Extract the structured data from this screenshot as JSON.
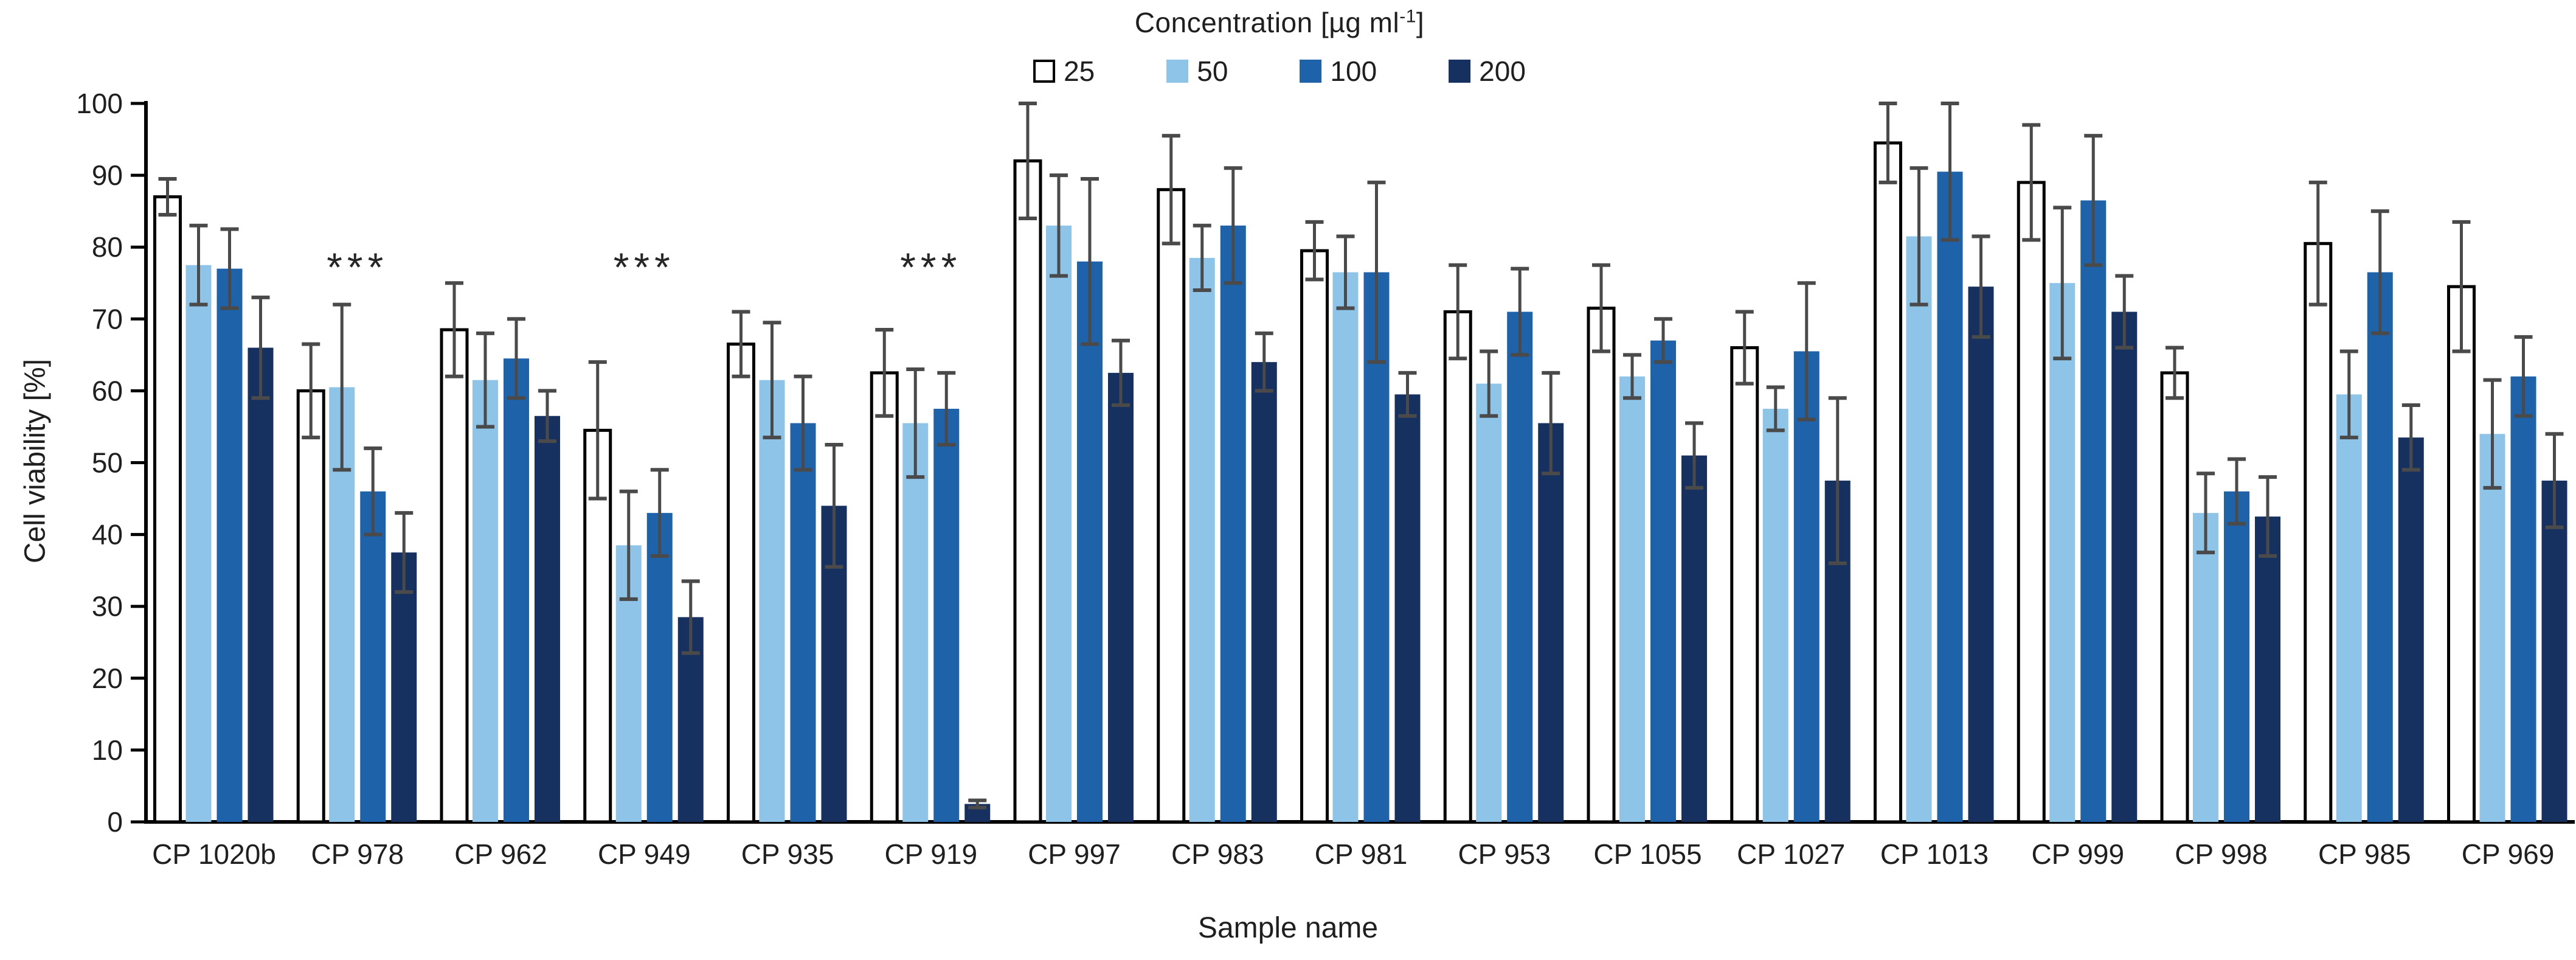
{
  "chart_data": {
    "type": "bar",
    "title": "",
    "legend_title_main": "Concentration [µg ml",
    "legend_title_sup": "-1",
    "legend_title_end": "]",
    "legend_position": "top",
    "xlabel": "Sample name",
    "ylabel": "Cell viability [%]",
    "ylim": [
      0,
      100
    ],
    "ytick_step": 10,
    "yticks": [
      0,
      10,
      20,
      30,
      40,
      50,
      60,
      70,
      80,
      90,
      100
    ],
    "grid": "off",
    "error_bar_color": "#4a4a4a",
    "axis_color": "#000000",
    "text_color": "#1f1f1f",
    "categories": [
      "CP 1020b",
      "CP 978",
      "CP 962",
      "CP 949",
      "CP 935",
      "CP 919",
      "CP 997",
      "CP 983",
      "CP 981",
      "CP 953",
      "CP 1055",
      "CP 1027",
      "CP 1013",
      "CP 999",
      "CP 998",
      "CP 985",
      "CP 969"
    ],
    "series": [
      {
        "name": "25",
        "fill": "#ffffff",
        "stroke": "#000000",
        "values": [
          87,
          60,
          68.5,
          54.5,
          66.5,
          62.5,
          92,
          88,
          79.5,
          71,
          71.5,
          66,
          94.5,
          89,
          62.5,
          80.5,
          74.5
        ],
        "errors": [
          2.5,
          6.5,
          6.5,
          9.5,
          4.5,
          6,
          8,
          7.5,
          4,
          6.5,
          6,
          5,
          5.5,
          8,
          3.5,
          8.5,
          9
        ]
      },
      {
        "name": "50",
        "fill": "#8fc4e9",
        "stroke": "none",
        "values": [
          77.5,
          60.5,
          61.5,
          38.5,
          61.5,
          55.5,
          83,
          78.5,
          76.5,
          61,
          62,
          57.5,
          81.5,
          75,
          43,
          59.5,
          54
        ],
        "errors": [
          5.5,
          11.5,
          6.5,
          7.5,
          8,
          7.5,
          7,
          4.5,
          5,
          4.5,
          3,
          3,
          9.5,
          10.5,
          5.5,
          6,
          7.5
        ]
      },
      {
        "name": "100",
        "fill": "#1e62a9",
        "stroke": "none",
        "values": [
          77,
          46,
          64.5,
          43,
          55.5,
          57.5,
          78,
          83,
          76.5,
          71,
          67,
          65.5,
          90.5,
          86.5,
          46,
          76.5,
          62
        ],
        "errors": [
          5.5,
          6,
          5.5,
          6,
          6.5,
          5,
          11.5,
          8,
          12.5,
          6,
          3,
          9.5,
          9.5,
          9,
          4.5,
          8.5,
          5.5
        ]
      },
      {
        "name": "200",
        "fill": "#16305f",
        "stroke": "none",
        "values": [
          66,
          37.5,
          56.5,
          28.5,
          44,
          2.5,
          62.5,
          64,
          59.5,
          55.5,
          51,
          47.5,
          74.5,
          71,
          42.5,
          53.5,
          47.5
        ],
        "errors": [
          7,
          5.5,
          3.5,
          5,
          8.5,
          0.5,
          4.5,
          4,
          3,
          7,
          4.5,
          11.5,
          7,
          5,
          5.5,
          4.5,
          6.5
        ]
      }
    ],
    "significance": [
      {
        "category": "CP 978",
        "label": "***"
      },
      {
        "category": "CP 949",
        "label": "***"
      },
      {
        "category": "CP 919",
        "label": "***"
      }
    ]
  }
}
